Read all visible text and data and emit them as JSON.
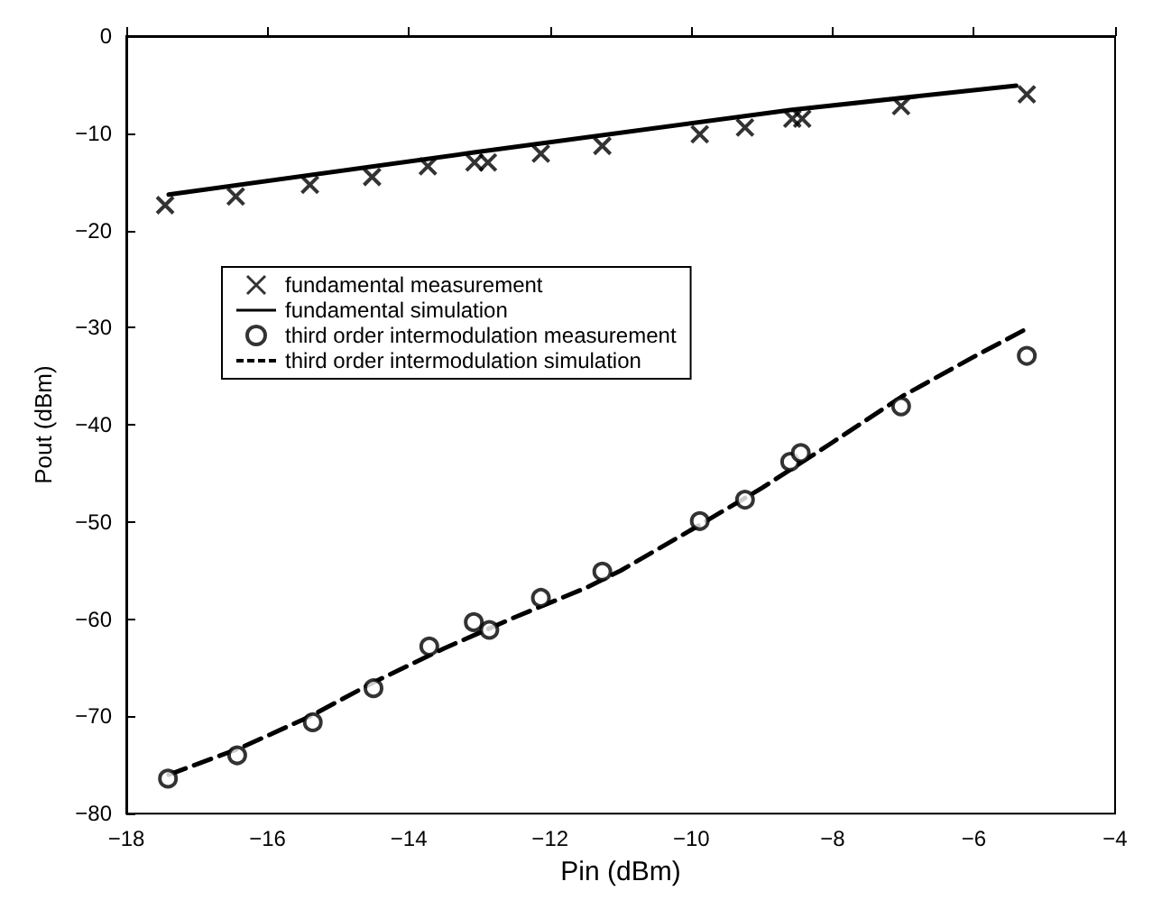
{
  "chart_data": {
    "type": "scatter",
    "xlabel": "Pin (dBm)",
    "ylabel": "Pout (dBm)",
    "xlim": [
      -18,
      -4
    ],
    "ylim": [
      -80,
      0
    ],
    "xticks": [
      -18,
      -16,
      -14,
      -12,
      -10,
      -8,
      -6,
      -4
    ],
    "yticks": [
      -80,
      -70,
      -60,
      -50,
      -40,
      -30,
      -20,
      -10,
      0
    ],
    "grid": false,
    "legend": "top left",
    "series": [
      {
        "name": "fundamental measurement",
        "marker": "cross",
        "color": "#000000",
        "x": [
          -17.45,
          -16.45,
          -15.4,
          -14.52,
          -13.73,
          -13.07,
          -12.88,
          -12.13,
          -11.26,
          -9.88,
          -9.24,
          -8.57,
          -8.43,
          -7.03,
          -5.25
        ],
        "values": [
          -17.4,
          -16.5,
          -15.3,
          -14.5,
          -13.4,
          -13.0,
          -13.0,
          -12.1,
          -11.3,
          -10.1,
          -9.4,
          -8.5,
          -8.5,
          -7.2,
          -6.0
        ]
      },
      {
        "name": "fundamental simulation",
        "type": "line",
        "marker": "none",
        "line_style": "solid",
        "color": "#000000",
        "x": [
          -17.4,
          -13.1,
          -8.6,
          -5.4
        ],
        "values": [
          -16.3,
          -12.0,
          -7.6,
          -5.1
        ]
      },
      {
        "name": "third order intermodulation measurement",
        "marker": "circle",
        "color": "#000000",
        "x": [
          -17.41,
          -16.43,
          -15.36,
          -14.5,
          -13.71,
          -13.08,
          -12.86,
          -12.13,
          -11.26,
          -9.88,
          -9.24,
          -8.6,
          -8.45,
          -7.03,
          -5.25
        ],
        "values": [
          -76.4,
          -74.0,
          -70.6,
          -67.1,
          -62.8,
          -60.3,
          -61.1,
          -57.8,
          -55.1,
          -49.9,
          -47.7,
          -43.8,
          -42.9,
          -38.1,
          -32.9
        ]
      },
      {
        "name": "third order intermodulation simulation",
        "type": "line",
        "marker": "none",
        "line_style": "dashed",
        "color": "#000000",
        "x": [
          -17.4,
          -16.4,
          -15.4,
          -14.5,
          -13.5,
          -12.5,
          -11.5,
          -11.0,
          -10.0,
          -9.0,
          -8.0,
          -7.0,
          -6.0,
          -5.3
        ],
        "values": [
          -76.0,
          -73.3,
          -70.0,
          -66.5,
          -63.0,
          -59.8,
          -56.8,
          -55.0,
          -50.8,
          -46.5,
          -41.8,
          -37.0,
          -33.0,
          -30.3
        ]
      }
    ]
  }
}
